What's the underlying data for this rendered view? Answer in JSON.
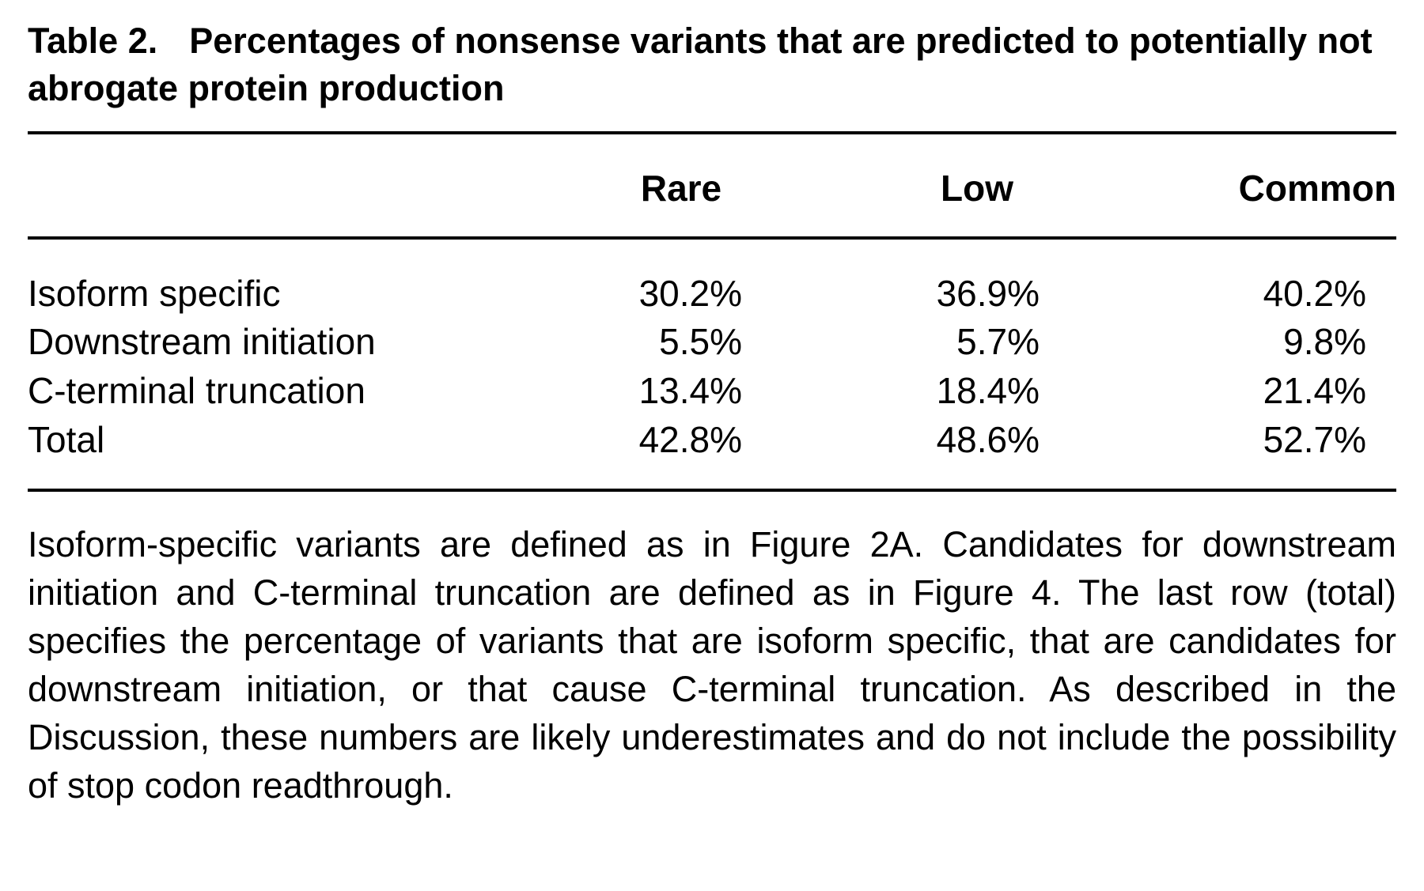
{
  "table_label": "Table 2.",
  "title": "Percentages of nonsense variants that are predicted to potentially not abrogate protein production",
  "table": {
    "header": [
      "Rare",
      "Low",
      "Common"
    ],
    "rows": [
      [
        "Isoform specific",
        "30.2%",
        "36.9%",
        "40.2%"
      ],
      [
        "Downstream initiation",
        "5.5%",
        "5.7%",
        "9.8%"
      ],
      [
        "C-terminal truncation",
        "13.4%",
        "18.4%",
        "21.4%"
      ],
      [
        "Total",
        "42.8%",
        "48.6%",
        "52.7%"
      ]
    ]
  },
  "footnote": "Isoform-specific variants are defined as in Figure 2A. Candidates for downstream initiation and C-terminal truncation are defined as in Figure 4. The last row (total) specifies the percentage of variants that are isoform specific, that are candidates for downstream initiation, or that cause C-terminal truncation. As described in the Discussion, these numbers are likely underestimates and do not include the possibility of stop codon readthrough."
}
